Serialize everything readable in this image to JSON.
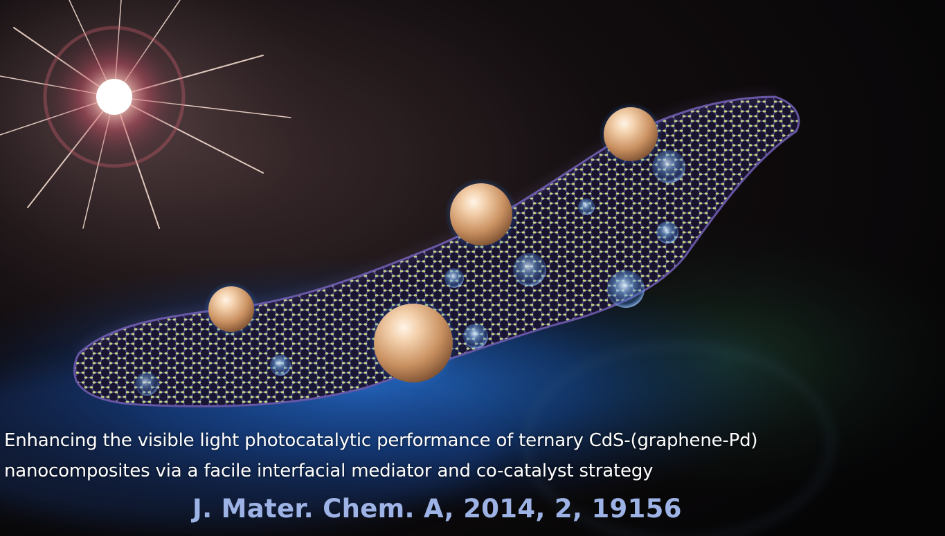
{
  "caption": {
    "line1": "Enhancing the visible light photocatalytic performance of ternary CdS-(graphene-Pd)",
    "line2": "nanocomposites via a facile interfacial mediator and co-catalyst strategy"
  },
  "citation": "J. Mater. Chem. A, 2014, 2, 19156",
  "colors": {
    "background": "#070709",
    "caption_text": "#ffffff",
    "citation_text": "#9db3e6",
    "graphene_atoms": "#c9e08a",
    "graphene_bonds": "#6a58a8",
    "pd_spheres": "#d9aa80",
    "bubbles": "#6aa8ee",
    "glow_blue": "#1a5fbf"
  },
  "icons": [
    "sun-flare-icon"
  ]
}
